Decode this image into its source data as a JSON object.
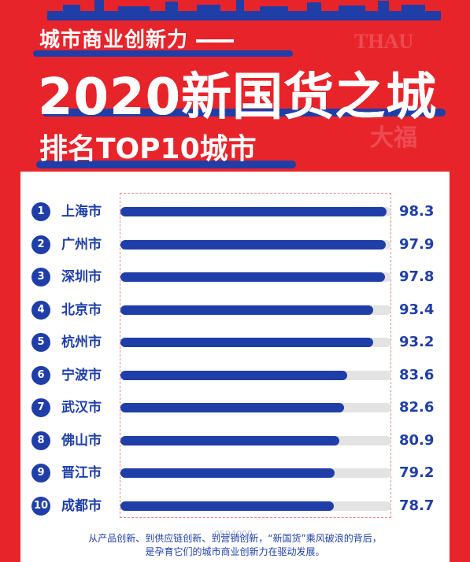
{
  "header": {
    "subtitle": "城市商业创新力",
    "main_title": "2020新国货之城",
    "ranking_title": "排名TOP10城市",
    "background_text_1": "THAU",
    "background_text_2": "大福"
  },
  "chart_data": {
    "type": "bar",
    "orientation": "horizontal",
    "categories": [
      "上海市",
      "广州市",
      "深圳市",
      "北京市",
      "杭州市",
      "宁波市",
      "武汉市",
      "佛山市",
      "晋江市",
      "成都市"
    ],
    "ranks": [
      "1",
      "2",
      "3",
      "4",
      "5",
      "6",
      "7",
      "8",
      "9",
      "10"
    ],
    "values": [
      98.3,
      97.9,
      97.8,
      93.4,
      93.2,
      83.6,
      82.6,
      80.9,
      79.2,
      78.7
    ],
    "value_labels": [
      "98.3",
      "97.9",
      "97.8",
      "93.4",
      "93.2",
      "83.6",
      "82.6",
      "80.9",
      "79.2",
      "78.7"
    ],
    "xlim": [
      0,
      100
    ],
    "grid": false,
    "legend": "none"
  },
  "footer": {
    "line_1": "从产品创新、到供应链创新、到营销创新，“新国货”乘风破浪的背后，",
    "line_2": "是孕育它们的城市商业创新力在驱动发展。",
    "watermark": "0594000"
  },
  "colors": {
    "red": "#e8242b",
    "blue": "#1f3ea8",
    "track": "#e3e3e3"
  }
}
